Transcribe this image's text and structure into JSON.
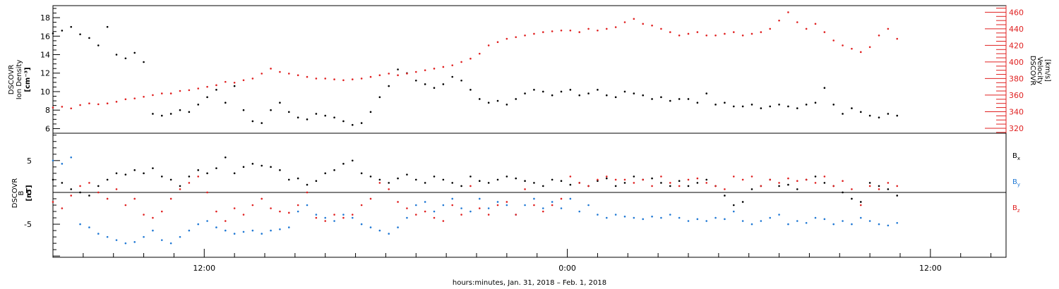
{
  "chart_data": [
    {
      "type": "scatter",
      "panel": "top",
      "left_ylabel_lines": [
        "DSCOVR",
        "Ion Density"
      ],
      "left_unit": "[cm⁻³]",
      "right_ylabel_lines": [
        "DSCOVR",
        "Velocity",
        "[km/s]"
      ],
      "left_ylim": [
        5.5,
        19.3
      ],
      "left_yticks": [
        6,
        8,
        10,
        12,
        14,
        16,
        18
      ],
      "right_ylim": [
        314,
        468
      ],
      "right_yticks": [
        320,
        340,
        360,
        380,
        400,
        420,
        440,
        460
      ],
      "grid": false,
      "series": [
        {
          "axis": "left",
          "color": "#000000",
          "x": [
            7.0,
            7.3,
            7.6,
            7.9,
            8.2,
            8.5,
            8.8,
            9.1,
            9.4,
            9.7,
            10.0,
            10.3,
            10.6,
            10.9,
            11.2,
            11.5,
            11.8,
            12.1,
            12.4,
            12.7,
            13.0,
            13.3,
            13.6,
            13.9,
            14.2,
            14.5,
            14.8,
            15.1,
            15.4,
            15.7,
            16.0,
            16.3,
            16.6,
            16.9,
            17.2,
            17.5,
            17.8,
            18.1,
            18.4,
            18.7,
            19.0,
            19.3,
            19.6,
            19.9,
            20.2,
            20.5,
            20.8,
            21.1,
            21.4,
            21.7,
            22.0,
            22.3,
            22.6,
            22.9,
            23.2,
            23.5,
            23.8,
            24.1,
            24.4,
            24.7,
            25.0,
            25.3,
            25.6,
            25.9,
            26.2,
            26.5,
            26.8,
            27.1,
            27.4,
            27.7,
            28.0,
            28.3,
            28.6,
            28.9,
            29.2,
            29.5,
            29.8,
            30.1,
            30.4,
            30.7,
            31.0,
            31.3,
            31.6,
            31.9,
            32.2,
            32.5,
            32.8,
            33.1,
            33.4,
            33.7,
            34.0,
            34.3,
            34.6,
            34.9
          ],
          "y": [
            16.3,
            16.6,
            17.0,
            16.2,
            15.8,
            15.0,
            17.0,
            14.0,
            13.6,
            14.2,
            13.2,
            7.6,
            7.4,
            7.6,
            8.0,
            7.8,
            8.6,
            9.4,
            10.2,
            8.8,
            10.6,
            8.0,
            6.8,
            6.6,
            8.0,
            8.8,
            7.8,
            7.2,
            7.0,
            7.6,
            7.4,
            7.2,
            6.8,
            6.4,
            6.6,
            7.8,
            9.4,
            10.6,
            12.4,
            12.0,
            11.2,
            10.8,
            10.4,
            10.8,
            11.6,
            11.2,
            10.2,
            9.2,
            8.8,
            9.0,
            8.6,
            9.2,
            9.8,
            10.2,
            10.0,
            9.6,
            10.0,
            10.2,
            9.6,
            9.8,
            10.2,
            9.6,
            9.4,
            10.0,
            9.8,
            9.6,
            9.2,
            9.4,
            9.0,
            9.2,
            9.2,
            8.8,
            9.8,
            8.6,
            8.8,
            8.4,
            8.4,
            8.6,
            8.2,
            8.4,
            8.6,
            8.4,
            8.2,
            8.6,
            8.8,
            10.4,
            8.6,
            7.6,
            8.2,
            7.8,
            7.4,
            7.2,
            7.6,
            7.4
          ]
        },
        {
          "axis": "right",
          "color": "#e02020",
          "x": [
            7.0,
            7.3,
            7.6,
            7.9,
            8.2,
            8.5,
            8.8,
            9.1,
            9.4,
            9.7,
            10.0,
            10.3,
            10.6,
            10.9,
            11.2,
            11.5,
            11.8,
            12.1,
            12.4,
            12.7,
            13.0,
            13.3,
            13.6,
            13.9,
            14.2,
            14.5,
            14.8,
            15.1,
            15.4,
            15.7,
            16.0,
            16.3,
            16.6,
            16.9,
            17.2,
            17.5,
            17.8,
            18.1,
            18.4,
            18.7,
            19.0,
            19.3,
            19.6,
            19.9,
            20.2,
            20.5,
            20.8,
            21.1,
            21.4,
            21.7,
            22.0,
            22.3,
            22.6,
            22.9,
            23.2,
            23.5,
            23.8,
            24.1,
            24.4,
            24.7,
            25.0,
            25.3,
            25.6,
            25.9,
            26.2,
            26.5,
            26.8,
            27.1,
            27.4,
            27.7,
            28.0,
            28.3,
            28.6,
            28.9,
            29.2,
            29.5,
            29.8,
            30.1,
            30.4,
            30.7,
            31.0,
            31.3,
            31.6,
            31.9,
            32.2,
            32.5,
            32.8,
            33.1,
            33.4,
            33.7,
            34.0,
            34.3,
            34.6,
            34.9
          ],
          "y": [
            345,
            346,
            344,
            348,
            350,
            349,
            350,
            352,
            355,
            356,
            358,
            360,
            362,
            362,
            365,
            366,
            368,
            370,
            372,
            376,
            375,
            378,
            380,
            386,
            392,
            388,
            386,
            384,
            382,
            380,
            380,
            379,
            378,
            379,
            380,
            382,
            384,
            386,
            384,
            386,
            388,
            390,
            392,
            394,
            396,
            400,
            404,
            410,
            420,
            424,
            428,
            430,
            432,
            434,
            436,
            437,
            438,
            438,
            436,
            440,
            438,
            440,
            442,
            448,
            452,
            446,
            444,
            440,
            436,
            432,
            434,
            436,
            432,
            432,
            434,
            436,
            432,
            434,
            436,
            440,
            450,
            460,
            448,
            440,
            446,
            436,
            426,
            420,
            416,
            412,
            418,
            432,
            440,
            428
          ]
        }
      ]
    },
    {
      "type": "scatter",
      "panel": "bottom",
      "ylabel_lines": [
        "DSCOVR",
        "B"
      ],
      "unit": "[nT]",
      "ylim": [
        -10.2,
        9.3
      ],
      "yticks": [
        -5,
        0,
        5
      ],
      "zero_line": true,
      "x_ticks": [
        {
          "value": 12,
          "label": "12:00"
        },
        {
          "value": 24,
          "label": "0:00"
        },
        {
          "value": 36,
          "label": "12:00"
        }
      ],
      "xlim": [
        7.0,
        38.5
      ],
      "xlabel": "hours:minutes, Jan. 31, 2018 – Feb.  1, 2018",
      "series": [
        {
          "name": "B",
          "subscript": "x",
          "color": "#000000",
          "x": [
            7.0,
            7.3,
            7.6,
            7.9,
            8.2,
            8.5,
            8.8,
            9.1,
            9.4,
            9.7,
            10.0,
            10.3,
            10.6,
            10.9,
            11.2,
            11.5,
            11.8,
            12.1,
            12.4,
            12.7,
            13.0,
            13.3,
            13.6,
            13.9,
            14.2,
            14.5,
            14.8,
            15.1,
            15.4,
            15.7,
            16.0,
            16.3,
            16.6,
            16.9,
            17.2,
            17.5,
            17.8,
            18.1,
            18.4,
            18.7,
            19.0,
            19.3,
            19.6,
            19.9,
            20.2,
            20.5,
            20.8,
            21.1,
            21.4,
            21.7,
            22.0,
            22.3,
            22.6,
            22.9,
            23.2,
            23.5,
            23.8,
            24.1,
            24.4,
            24.7,
            25.0,
            25.3,
            25.6,
            25.9,
            26.2,
            26.5,
            26.8,
            27.1,
            27.4,
            27.7,
            28.0,
            28.3,
            28.6,
            28.9,
            29.2,
            29.5,
            29.8,
            30.1,
            30.4,
            30.7,
            31.0,
            31.3,
            31.6,
            31.9,
            32.2,
            32.5,
            32.8,
            33.1,
            33.4,
            33.7,
            34.0,
            34.3,
            34.6,
            34.9
          ],
          "y": [
            2.0,
            1.5,
            0.5,
            0.0,
            -0.5,
            1.0,
            2.0,
            3.0,
            2.8,
            3.5,
            3.0,
            3.8,
            2.5,
            2.0,
            1.0,
            2.5,
            3.5,
            3.0,
            3.8,
            5.5,
            3.0,
            4.0,
            4.5,
            4.2,
            4.0,
            3.5,
            2.0,
            2.2,
            1.2,
            1.8,
            3.0,
            3.5,
            4.5,
            5.0,
            3.0,
            2.5,
            2.0,
            1.5,
            2.2,
            2.8,
            2.0,
            1.5,
            2.5,
            2.0,
            1.5,
            1.0,
            2.5,
            1.8,
            1.5,
            2.0,
            2.5,
            2.2,
            1.8,
            1.5,
            1.0,
            2.0,
            1.8,
            1.2,
            1.5,
            1.0,
            1.8,
            2.2,
            1.0,
            1.5,
            2.5,
            2.0,
            2.2,
            1.5,
            1.0,
            1.8,
            1.0,
            1.5,
            2.0,
            1.0,
            -0.5,
            -2.0,
            -1.5,
            0.5,
            1.0,
            2.0,
            1.0,
            1.2,
            0.5,
            2.0,
            2.5,
            1.5,
            1.0,
            0.0,
            -1.0,
            -1.5,
            1.5,
            1.0,
            0.5,
            -0.5
          ]
        },
        {
          "name": "B",
          "subscript": "y",
          "color": "#1f78d4",
          "x": [
            7.0,
            7.3,
            7.6,
            7.9,
            8.2,
            8.5,
            8.8,
            9.1,
            9.4,
            9.7,
            10.0,
            10.3,
            10.6,
            10.9,
            11.2,
            11.5,
            11.8,
            12.1,
            12.4,
            12.7,
            13.0,
            13.3,
            13.6,
            13.9,
            14.2,
            14.5,
            14.8,
            15.1,
            15.4,
            15.7,
            16.0,
            16.3,
            16.6,
            16.9,
            17.2,
            17.5,
            17.8,
            18.1,
            18.4,
            18.7,
            19.0,
            19.3,
            19.6,
            19.9,
            20.2,
            20.5,
            20.8,
            21.1,
            21.4,
            21.7,
            22.0,
            22.3,
            22.6,
            22.9,
            23.2,
            23.5,
            23.8,
            24.1,
            24.4,
            24.7,
            25.0,
            25.3,
            25.6,
            25.9,
            26.2,
            26.5,
            26.8,
            27.1,
            27.4,
            27.7,
            28.0,
            28.3,
            28.6,
            28.9,
            29.2,
            29.5,
            29.8,
            30.1,
            30.4,
            30.7,
            31.0,
            31.3,
            31.6,
            31.9,
            32.2,
            32.5,
            32.8,
            33.1,
            33.4,
            33.7,
            34.0,
            34.3,
            34.6,
            34.9
          ],
          "y": [
            5.0,
            4.5,
            5.5,
            -5.0,
            -5.5,
            -6.5,
            -7.0,
            -7.5,
            -8.0,
            -7.8,
            -7.0,
            -6.0,
            -7.5,
            -8.0,
            -7.0,
            -6.0,
            -5.0,
            -4.5,
            -5.5,
            -6.0,
            -6.5,
            -6.2,
            -6.0,
            -6.5,
            -6.0,
            -5.8,
            -5.5,
            -3.0,
            -2.0,
            -3.5,
            -4.0,
            -4.5,
            -3.5,
            -4.0,
            -5.0,
            -5.5,
            -6.0,
            -6.5,
            -5.5,
            -4.0,
            -2.0,
            -1.5,
            -3.0,
            -2.0,
            -1.0,
            -2.5,
            -3.0,
            -1.0,
            -2.5,
            -1.5,
            -2.0,
            -3.5,
            -2.0,
            -1.0,
            -2.5,
            -1.5,
            -2.5,
            -1.0,
            -3.0,
            -2.0,
            -3.5,
            -4.0,
            -3.5,
            -3.8,
            -4.0,
            -4.2,
            -3.8,
            -4.0,
            -3.5,
            -4.0,
            -4.5,
            -4.2,
            -4.5,
            -4.0,
            -4.2,
            -3.0,
            -4.5,
            -5.0,
            -4.5,
            -4.0,
            -3.5,
            -5.0,
            -4.5,
            -4.8,
            -4.0,
            -4.2,
            -5.0,
            -4.5,
            -5.0,
            -4.0,
            -4.5,
            -5.0,
            -5.2,
            -4.8
          ]
        },
        {
          "name": "B",
          "subscript": "z",
          "color": "#e02020",
          "x": [
            7.0,
            7.3,
            7.6,
            7.9,
            8.2,
            8.5,
            8.8,
            9.1,
            9.4,
            9.7,
            10.0,
            10.3,
            10.6,
            10.9,
            11.2,
            11.5,
            11.8,
            12.1,
            12.4,
            12.7,
            13.0,
            13.3,
            13.6,
            13.9,
            14.2,
            14.5,
            14.8,
            15.1,
            15.4,
            15.7,
            16.0,
            16.3,
            16.6,
            16.9,
            17.2,
            17.5,
            17.8,
            18.1,
            18.4,
            18.7,
            19.0,
            19.3,
            19.6,
            19.9,
            20.2,
            20.5,
            20.8,
            21.1,
            21.4,
            21.7,
            22.0,
            22.3,
            22.6,
            22.9,
            23.2,
            23.5,
            23.8,
            24.1,
            24.4,
            24.7,
            25.0,
            25.3,
            25.6,
            25.9,
            26.2,
            26.5,
            26.8,
            27.1,
            27.4,
            27.7,
            28.0,
            28.3,
            28.6,
            28.9,
            29.2,
            29.5,
            29.8,
            30.1,
            30.4,
            30.7,
            31.0,
            31.3,
            31.6,
            31.9,
            32.2,
            32.5,
            32.8,
            33.1,
            33.4,
            33.7,
            34.0,
            34.3,
            34.6,
            34.9
          ],
          "y": [
            -1.5,
            -2.5,
            -0.5,
            1.0,
            1.5,
            0.0,
            -1.0,
            0.5,
            -2.0,
            -1.0,
            -3.5,
            -4.0,
            -3.0,
            -1.0,
            0.5,
            1.5,
            2.5,
            0.0,
            -3.0,
            -4.5,
            -2.5,
            -3.5,
            -2.0,
            -1.0,
            -2.5,
            -3.0,
            -3.2,
            -2.0,
            0.0,
            -4.0,
            -4.5,
            -3.5,
            -4.0,
            -3.5,
            -2.0,
            -1.0,
            1.5,
            0.5,
            -1.5,
            -2.5,
            -3.5,
            -3.0,
            -4.0,
            -4.5,
            -2.0,
            -3.5,
            1.0,
            -2.5,
            -3.5,
            -2.0,
            -1.5,
            -3.5,
            0.5,
            -2.0,
            -3.0,
            -2.0,
            -1.0,
            2.5,
            1.5,
            1.0,
            2.0,
            2.5,
            2.0,
            2.0,
            1.5,
            2.0,
            1.0,
            2.5,
            1.5,
            1.0,
            2.0,
            2.2,
            1.5,
            1.0,
            0.5,
            2.5,
            2.0,
            2.5,
            1.0,
            2.0,
            1.5,
            2.2,
            1.8,
            2.0,
            1.5,
            2.5,
            1.0,
            1.8,
            0.5,
            -2.0,
            1.0,
            0.5,
            1.5,
            1.0
          ]
        }
      ]
    }
  ]
}
